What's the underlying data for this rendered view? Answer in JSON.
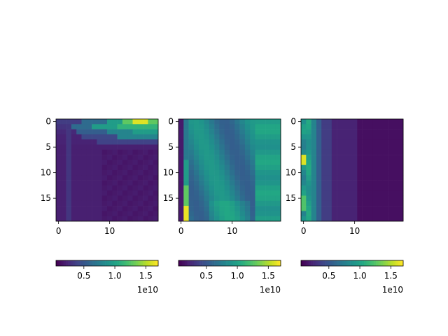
{
  "chart_data": [
    {
      "type": "heatmap",
      "panel": "left",
      "grid_size": [
        20,
        20
      ],
      "colormap": "viridis",
      "x_ticks": [
        0,
        10
      ],
      "y_ticks": [
        0,
        5,
        10,
        15
      ],
      "colorbar": {
        "range": [
          0.05,
          1.7
        ],
        "ticks": [
          0.5,
          1.0,
          1.5
        ],
        "tick_labels": [
          "0.5",
          "1.0",
          "1.5"
        ],
        "exponent_label": "1e10"
      },
      "pattern": "hot band along top rows (0-3), brightest near columns 15-18 of row 0; faint ridge down column 2; rest low"
    },
    {
      "type": "heatmap",
      "panel": "middle",
      "grid_size": [
        20,
        20
      ],
      "colormap": "viridis",
      "x_ticks": [
        0,
        10
      ],
      "y_ticks": [
        0,
        5,
        10,
        15
      ],
      "colorbar": {
        "range": [
          0.05,
          1.7
        ],
        "ticks": [
          0.5,
          1.0,
          1.5
        ],
        "tick_labels": [
          "0.5",
          "1.0",
          "1.5"
        ],
        "exponent_label": "1e10"
      },
      "pattern": "column 0 low; column 1 bright near bottom rows; diagonal stripes of mid values; right side teal-green"
    },
    {
      "type": "heatmap",
      "panel": "right",
      "grid_size": [
        20,
        20
      ],
      "colormap": "viridis",
      "x_ticks": [
        0,
        10
      ],
      "y_ticks": [
        0,
        5,
        10,
        15
      ],
      "colorbar": {
        "range": [
          0.05,
          1.7
        ],
        "ticks": [
          0.5,
          1.0,
          1.5
        ],
        "tick_labels": [
          "0.5",
          "1.0",
          "1.5"
        ],
        "exponent_label": "1e10"
      },
      "pattern": "bright column 0-1 (peak rows 7-8 yellow), teal band columns 1-3, fading to dark for columns 6-19"
    }
  ]
}
